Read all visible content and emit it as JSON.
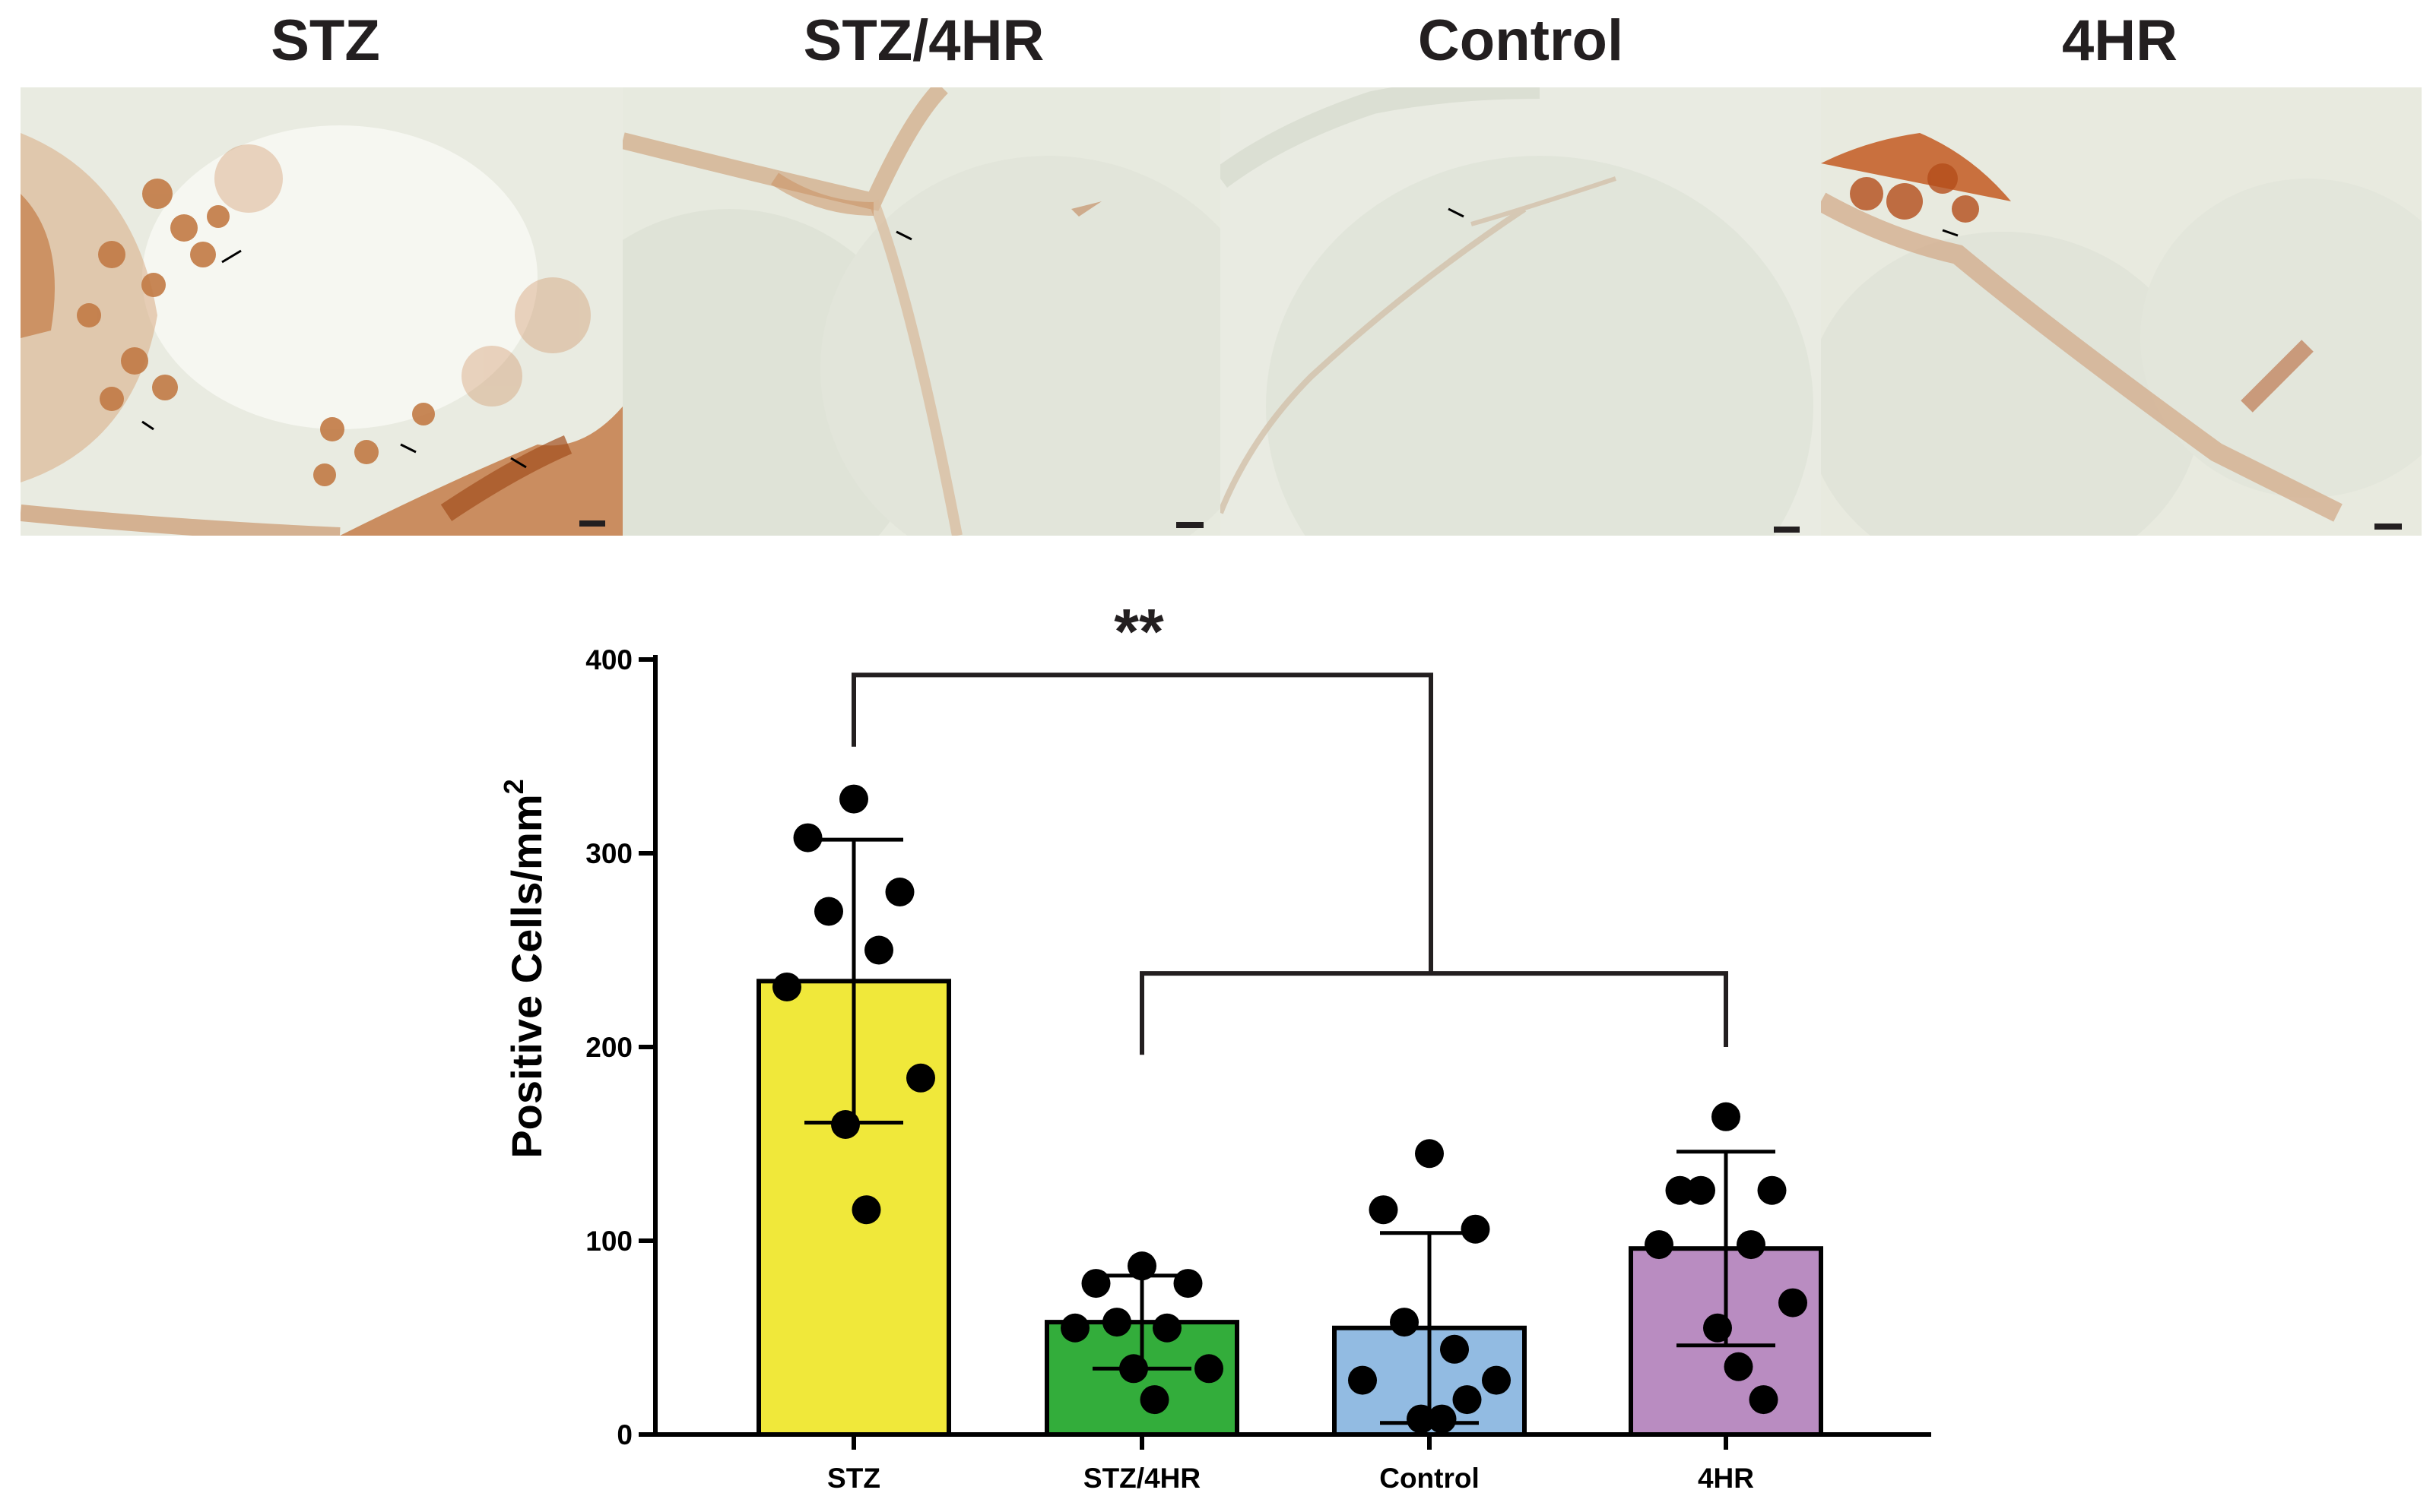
{
  "panels": [
    {
      "label": "STZ"
    },
    {
      "label": "STZ/4HR"
    },
    {
      "label": "Control"
    },
    {
      "label": "4HR"
    }
  ],
  "colors": {
    "stz": "#f0e83a",
    "stz_4hr": "#33ad3b",
    "control": "#92bbe2",
    "hr4": "#b98cc1",
    "stain": "#b4622c",
    "tissue": "#ebede4"
  },
  "chart_data": {
    "type": "bar",
    "categories": [
      "STZ",
      "STZ/4HR",
      "Control",
      "4HR"
    ],
    "values": [
      234,
      58,
      55,
      96
    ],
    "error": [
      73,
      24,
      49,
      50
    ],
    "points": [
      [
        328,
        308,
        280,
        270,
        250,
        231,
        184,
        160,
        116
      ],
      [
        87,
        78,
        78,
        58,
        55,
        55,
        34,
        34,
        18
      ],
      [
        145,
        116,
        106,
        58,
        44,
        28,
        28,
        8,
        8,
        18
      ],
      [
        164,
        126,
        126,
        126,
        98,
        98,
        68,
        55,
        35,
        18
      ]
    ],
    "ylabel": "Positive Cells/mm",
    "ylabel_superscript": "2",
    "ylim": [
      0,
      400
    ],
    "yticks": [
      0,
      100,
      200,
      300,
      400
    ],
    "significance": "**",
    "grid": false,
    "legend": "none"
  }
}
